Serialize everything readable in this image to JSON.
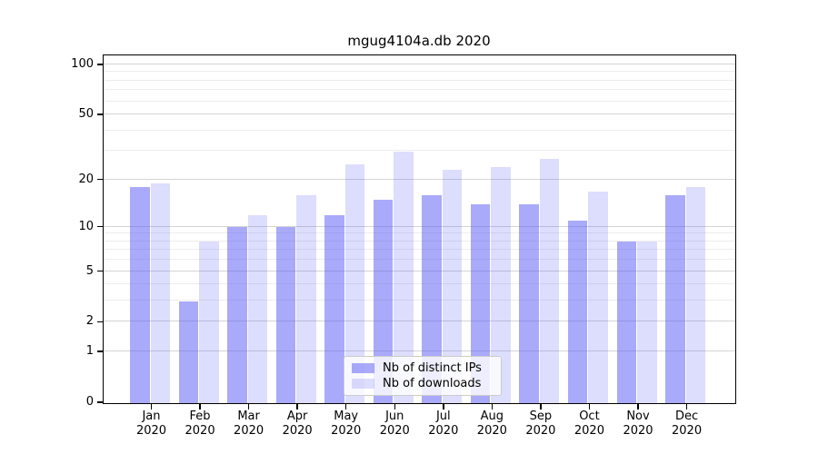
{
  "chart_data": {
    "type": "bar",
    "title": "mgug4104a.db 2020",
    "x_categories": [
      "Jan",
      "Feb",
      "Mar",
      "Apr",
      "May",
      "Jun",
      "Jul",
      "Aug",
      "Sep",
      "Oct",
      "Nov",
      "Dec"
    ],
    "x_category_year": "2020",
    "series": [
      {
        "name": "Nb of distinct IPs",
        "color": "rgba(85,85,245,0.50)",
        "color_on_white_hex": "#aaaaf9",
        "values": [
          18,
          3,
          10,
          10,
          12,
          15,
          16,
          14,
          14,
          11,
          8,
          16
        ]
      },
      {
        "name": "Nb of downloads",
        "color": "rgba(85,85,245,0.20)",
        "color_on_white_hex": "#ddddfc",
        "values": [
          19,
          8,
          12,
          16,
          25,
          30,
          23,
          24,
          27,
          17,
          8,
          18
        ]
      }
    ],
    "y_axis": {
      "scale": "log1p",
      "tick_labels": [
        "100",
        "50",
        "20",
        "10",
        "5",
        "2",
        "1",
        "0"
      ],
      "tick_values": [
        100,
        50,
        20,
        10,
        5,
        2,
        1,
        0
      ],
      "minor_tick_values": [
        3,
        4,
        6,
        7,
        8,
        9,
        30,
        40,
        60,
        70,
        80,
        90
      ],
      "range_max": 113
    },
    "grid": "on",
    "legend_position": "lower center"
  },
  "colors": {
    "major_grid": "#d4d4d4",
    "minor_grid": "#ededed",
    "spine": "#000000",
    "text": "#000000",
    "background": "#ffffff"
  }
}
